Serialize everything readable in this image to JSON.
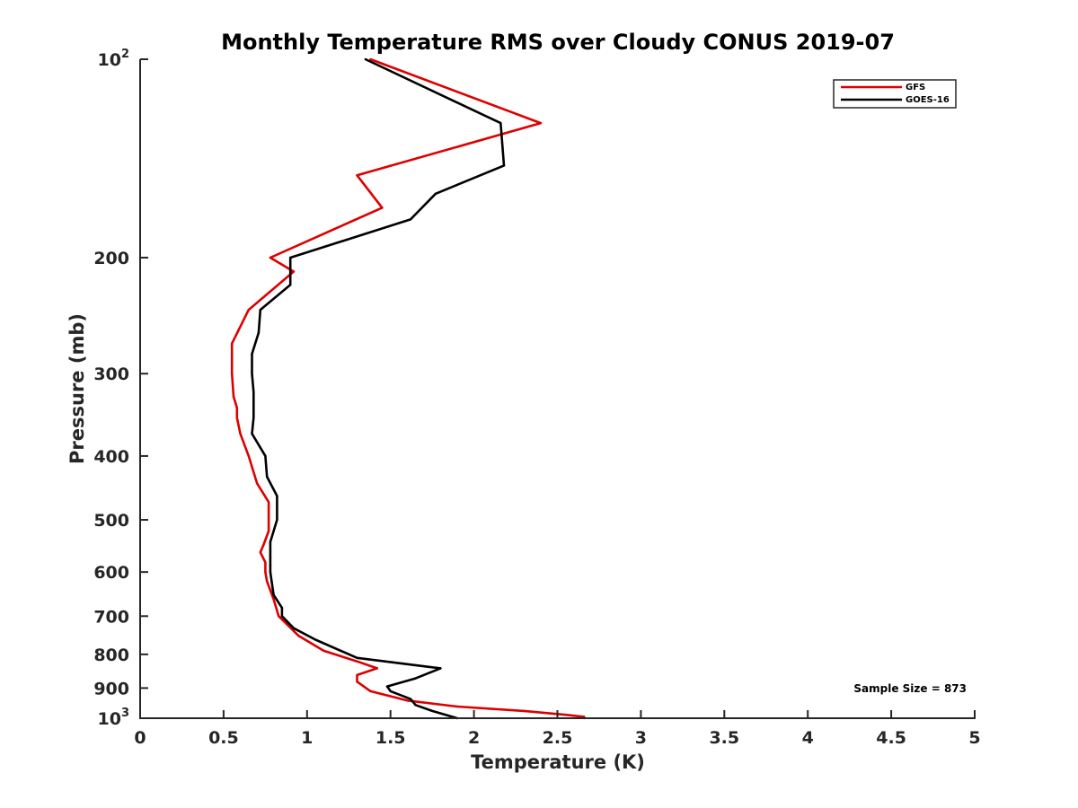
{
  "chart_data": {
    "type": "line",
    "title": "Monthly Temperature RMS over Cloudy CONUS  2019-07",
    "xlabel": "Temperature (K)",
    "ylabel": "Pressure (mb)",
    "xlim": [
      0,
      5
    ],
    "ylim": [
      100,
      1000
    ],
    "y_scale": "log",
    "y_reversed": true,
    "x_ticks": [
      0,
      0.5,
      1,
      1.5,
      2,
      2.5,
      3,
      3.5,
      4,
      4.5,
      5
    ],
    "x_tick_labels": [
      "0",
      "0.5",
      "1",
      "1.5",
      "2",
      "2.5",
      "3",
      "3.5",
      "4",
      "4.5",
      "5"
    ],
    "y_ticks": [
      100,
      200,
      300,
      400,
      500,
      600,
      700,
      800,
      900,
      1000
    ],
    "y_tick_labels": [
      {
        "base": "10",
        "exp": "2"
      },
      {
        "base": "200",
        "exp": ""
      },
      {
        "base": "300",
        "exp": ""
      },
      {
        "base": "400",
        "exp": ""
      },
      {
        "base": "500",
        "exp": ""
      },
      {
        "base": "600",
        "exp": ""
      },
      {
        "base": "700",
        "exp": ""
      },
      {
        "base": "800",
        "exp": ""
      },
      {
        "base": "900",
        "exp": ""
      },
      {
        "base": "10",
        "exp": "3"
      }
    ],
    "grid": false,
    "legend_position": "top-right",
    "annotation": "Sample Size = 873",
    "series": [
      {
        "name": "GFS",
        "color": "#dd0000",
        "points": [
          [
            1.38,
            100
          ],
          [
            2.4,
            125
          ],
          [
            1.3,
            150
          ],
          [
            1.45,
            168
          ],
          [
            0.78,
            200
          ],
          [
            0.92,
            210
          ],
          [
            0.65,
            240
          ],
          [
            0.55,
            270
          ],
          [
            0.55,
            300
          ],
          [
            0.56,
            325
          ],
          [
            0.58,
            338
          ],
          [
            0.58,
            350
          ],
          [
            0.6,
            370
          ],
          [
            0.65,
            400
          ],
          [
            0.7,
            440
          ],
          [
            0.77,
            470
          ],
          [
            0.77,
            500
          ],
          [
            0.77,
            520
          ],
          [
            0.74,
            545
          ],
          [
            0.72,
            560
          ],
          [
            0.75,
            580
          ],
          [
            0.75,
            600
          ],
          [
            0.76,
            620
          ],
          [
            0.8,
            660
          ],
          [
            0.83,
            700
          ],
          [
            0.95,
            750
          ],
          [
            1.1,
            790
          ],
          [
            1.3,
            820
          ],
          [
            1.42,
            840
          ],
          [
            1.3,
            860
          ],
          [
            1.3,
            880
          ],
          [
            1.38,
            910
          ],
          [
            1.6,
            940
          ],
          [
            1.9,
            960
          ],
          [
            2.3,
            975
          ],
          [
            2.55,
            988
          ],
          [
            2.66,
            995
          ],
          [
            2.66,
            1000
          ]
        ]
      },
      {
        "name": "GOES-16",
        "color": "#000000",
        "points": [
          [
            1.35,
            100
          ],
          [
            2.16,
            125
          ],
          [
            2.18,
            145
          ],
          [
            1.77,
            160
          ],
          [
            1.62,
            175
          ],
          [
            0.9,
            200
          ],
          [
            0.9,
            210
          ],
          [
            0.9,
            220
          ],
          [
            0.72,
            240
          ],
          [
            0.71,
            260
          ],
          [
            0.67,
            280
          ],
          [
            0.67,
            300
          ],
          [
            0.68,
            320
          ],
          [
            0.68,
            350
          ],
          [
            0.67,
            370
          ],
          [
            0.75,
            400
          ],
          [
            0.76,
            430
          ],
          [
            0.82,
            460
          ],
          [
            0.82,
            480
          ],
          [
            0.82,
            500
          ],
          [
            0.8,
            520
          ],
          [
            0.78,
            540
          ],
          [
            0.78,
            560
          ],
          [
            0.78,
            600
          ],
          [
            0.8,
            650
          ],
          [
            0.85,
            680
          ],
          [
            0.85,
            700
          ],
          [
            0.92,
            730
          ],
          [
            1.05,
            760
          ],
          [
            1.3,
            810
          ],
          [
            1.8,
            840
          ],
          [
            1.65,
            870
          ],
          [
            1.48,
            895
          ],
          [
            1.5,
            910
          ],
          [
            1.62,
            935
          ],
          [
            1.65,
            955
          ],
          [
            1.75,
            975
          ],
          [
            1.9,
            1000
          ]
        ]
      }
    ]
  }
}
